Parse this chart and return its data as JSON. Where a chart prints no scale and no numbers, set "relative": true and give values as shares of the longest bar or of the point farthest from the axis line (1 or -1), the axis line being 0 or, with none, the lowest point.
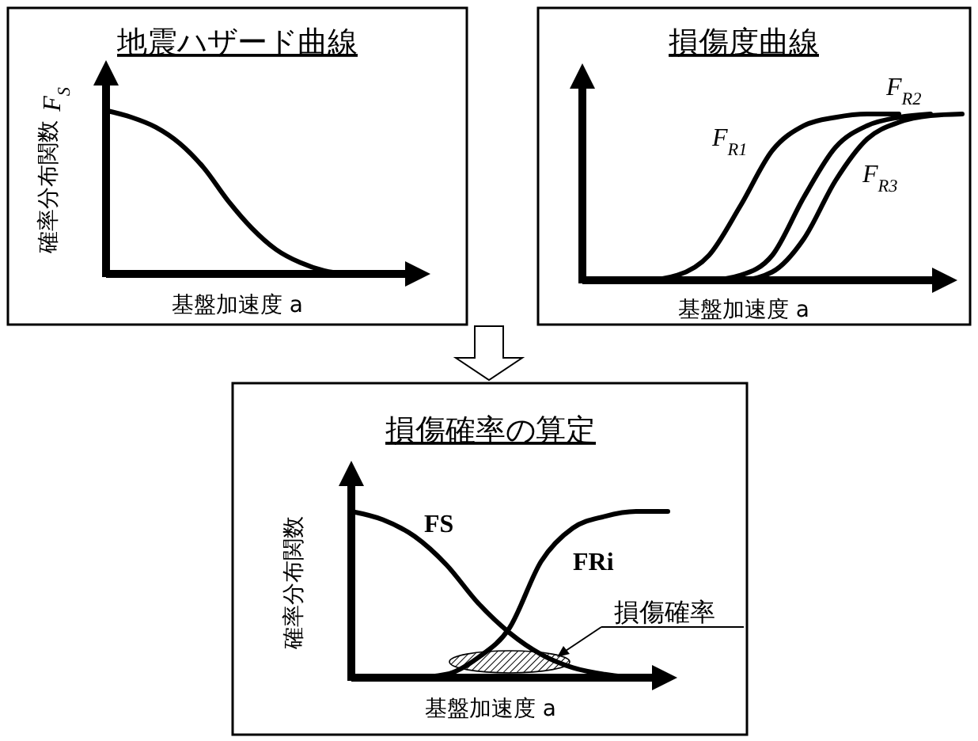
{
  "chart_data": [
    {
      "type": "line",
      "title": "地震ハザード曲線",
      "xlabel": "基盤加速度 a",
      "ylabel": "確率分布関数",
      "relative": true,
      "categories": [
        null,
        null,
        null,
        null,
        null,
        null,
        null,
        null,
        null,
        null,
        null
      ],
      "series": [
        {
          "name": "F$_{S}$",
          "color": "#000000",
          "values": [
            1,
            0.96,
            0.9,
            0.8,
            0.65,
            0.45,
            0.28,
            0.15,
            0.07,
            0.02,
            0
          ]
        }
      ]
    },
    {
      "type": "line",
      "title": "損傷度曲線",
      "xlabel": "基盤加速度 a",
      "relative": true,
      "categories": [
        null,
        null,
        null,
        null,
        null,
        null,
        null,
        null,
        null,
        null,
        null,
        null,
        null
      ],
      "series": [
        {
          "name": "F$_{R1}$",
          "color": "#000000",
          "values": [
            0,
            0,
            0,
            0.03,
            0.15,
            0.45,
            0.78,
            0.93,
            0.98,
            1,
            1,
            null,
            null
          ]
        },
        {
          "name": "F$_{R2}$",
          "color": "#000000",
          "values": [
            0,
            0,
            0,
            0,
            0,
            0.03,
            0.15,
            0.5,
            0.8,
            0.93,
            0.98,
            1,
            null
          ]
        },
        {
          "name": "F$_{R3}$",
          "color": "#000000",
          "values": [
            0,
            0,
            0,
            0,
            0,
            0,
            0.05,
            0.25,
            0.6,
            0.85,
            0.95,
            0.99,
            1
          ]
        }
      ]
    },
    {
      "type": "line",
      "title": "損傷確率の算定",
      "xlabel": "基盤加速度 a",
      "ylabel": "確率分布関数",
      "relative": true,
      "annotations": [
        "損傷確率"
      ],
      "categories": [
        null,
        null,
        null,
        null,
        null,
        null,
        null,
        null,
        null,
        null,
        null
      ],
      "series": [
        {
          "name": "FS",
          "color": "#000000",
          "values": [
            1,
            0.95,
            0.85,
            0.68,
            0.45,
            0.27,
            0.14,
            0.06,
            0.02,
            0,
            0
          ]
        },
        {
          "name": "FRi",
          "color": "#000000",
          "values": [
            0,
            0,
            0,
            0.02,
            0.12,
            0.3,
            0.7,
            0.9,
            0.97,
            1,
            1
          ]
        }
      ]
    }
  ]
}
